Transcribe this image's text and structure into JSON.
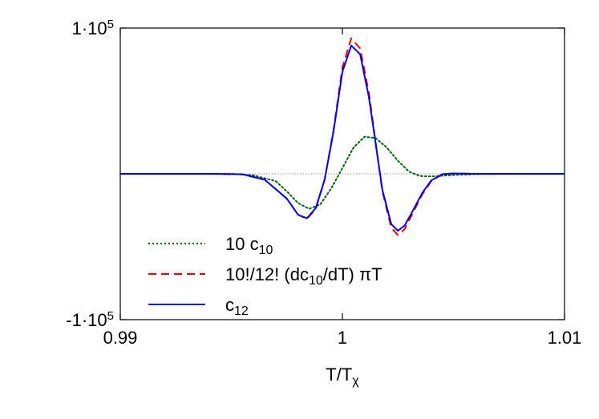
{
  "chart_data": {
    "type": "line",
    "title": "",
    "xlabel": {
      "base": "T/T",
      "sub": "χ"
    },
    "ylabel": "",
    "xlim": [
      0.99,
      1.01
    ],
    "ylim": [
      -100000,
      100000
    ],
    "x_ticks": [
      {
        "value": 0.99,
        "label": "0.99"
      },
      {
        "value": 1.0,
        "label": "1"
      },
      {
        "value": 1.01,
        "label": "1.01"
      }
    ],
    "y_ticks": [
      {
        "value": 100000,
        "base": "1·10",
        "exp": "5"
      },
      {
        "value": -100000,
        "base": "-1·10",
        "exp": "5"
      }
    ],
    "zero_line": true,
    "legend_position": "bottom-left",
    "series": [
      {
        "name": "10 c10",
        "legend": {
          "pre": "10 c",
          "sub": "10",
          "post": ""
        },
        "color": "#006400",
        "dash": "dotted",
        "points": [
          [
            0.99,
            0
          ],
          [
            0.994,
            0
          ],
          [
            0.995,
            -50
          ],
          [
            0.996,
            -1000
          ],
          [
            0.997,
            -5000
          ],
          [
            0.9975,
            -12000
          ],
          [
            0.998,
            -20000
          ],
          [
            0.9985,
            -24000
          ],
          [
            0.999,
            -21000
          ],
          [
            0.9995,
            -10000
          ],
          [
            1.0,
            4000
          ],
          [
            1.0005,
            18000
          ],
          [
            1.001,
            25500
          ],
          [
            1.0015,
            24500
          ],
          [
            1.002,
            18000
          ],
          [
            1.0025,
            9000
          ],
          [
            1.003,
            1500
          ],
          [
            1.0035,
            -1500
          ],
          [
            1.004,
            -1800
          ],
          [
            1.005,
            -800
          ],
          [
            1.006,
            -200
          ],
          [
            1.008,
            0
          ],
          [
            1.01,
            0
          ]
        ]
      },
      {
        "name": "10!/12! (dc10/dT) πT",
        "legend": {
          "pre": "10!/12! (dc",
          "sub": "10",
          "post": "/dT) πT"
        },
        "color": "#e00000",
        "dash": "dashed",
        "points": [
          [
            0.99,
            0
          ],
          [
            0.994,
            0
          ],
          [
            0.9955,
            -300
          ],
          [
            0.9965,
            -4000
          ],
          [
            0.9975,
            -17000
          ],
          [
            0.998,
            -28000
          ],
          [
            0.9984,
            -31000
          ],
          [
            0.9988,
            -24000
          ],
          [
            0.9992,
            -4000
          ],
          [
            0.9996,
            30000
          ],
          [
            1.0,
            73000
          ],
          [
            1.0004,
            93000
          ],
          [
            1.0008,
            86000
          ],
          [
            1.0012,
            55000
          ],
          [
            1.0016,
            10000
          ],
          [
            1.0018,
            -12000
          ],
          [
            1.0022,
            -37000
          ],
          [
            1.0025,
            -42000
          ],
          [
            1.0028,
            -38000
          ],
          [
            1.0032,
            -26000
          ],
          [
            1.0036,
            -14000
          ],
          [
            1.004,
            -5000
          ],
          [
            1.0045,
            -300
          ],
          [
            1.005,
            300
          ],
          [
            1.006,
            0
          ],
          [
            1.01,
            0
          ]
        ]
      },
      {
        "name": "c12",
        "legend": {
          "pre": "c",
          "sub": "12",
          "post": ""
        },
        "color": "#0000e0",
        "dash": "solid",
        "points": [
          [
            0.99,
            0
          ],
          [
            0.994,
            0
          ],
          [
            0.9955,
            -300
          ],
          [
            0.9965,
            -4000
          ],
          [
            0.9975,
            -17000
          ],
          [
            0.998,
            -28000
          ],
          [
            0.9984,
            -30500
          ],
          [
            0.9988,
            -23500
          ],
          [
            0.9992,
            -4000
          ],
          [
            0.9996,
            29000
          ],
          [
            1.0,
            70000
          ],
          [
            1.0004,
            88000
          ],
          [
            1.0008,
            82000
          ],
          [
            1.0012,
            52000
          ],
          [
            1.0016,
            10000
          ],
          [
            1.0018,
            -11000
          ],
          [
            1.0022,
            -34500
          ],
          [
            1.0025,
            -39000
          ],
          [
            1.0028,
            -35500
          ],
          [
            1.0032,
            -24500
          ],
          [
            1.0036,
            -13000
          ],
          [
            1.004,
            -4500
          ],
          [
            1.0045,
            -200
          ],
          [
            1.005,
            300
          ],
          [
            1.006,
            0
          ],
          [
            1.01,
            0
          ]
        ]
      }
    ]
  }
}
